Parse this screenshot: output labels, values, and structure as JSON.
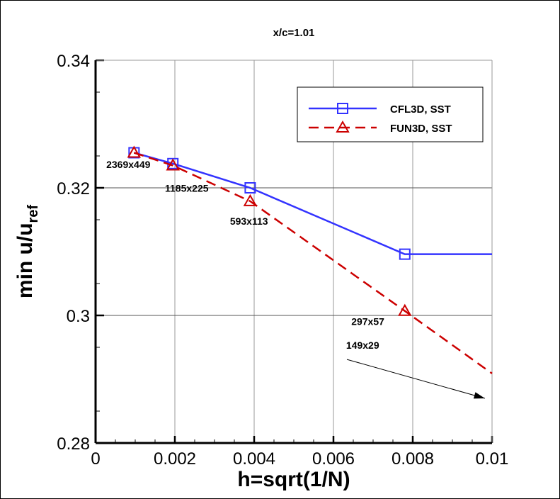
{
  "chart_data": {
    "type": "line",
    "title": "x/c=1.01",
    "xlabel": "h=sqrt(1/N)",
    "ylabel": "min u/u",
    "ylabel_subscript": "ref",
    "xlim": [
      0,
      0.01
    ],
    "ylim": [
      0.28,
      0.34
    ],
    "xticks": [
      "0",
      "0.002",
      "0.004",
      "0.006",
      "0.008",
      "0.01"
    ],
    "yticks": [
      "0.28",
      "0.3",
      "0.32",
      "0.34"
    ],
    "grid": true,
    "legend_position": "top-right",
    "series": [
      {
        "name": "CFL3D, SST",
        "color": "#3333ff",
        "dash": "solid",
        "marker": "square",
        "x": [
          0.00097,
          0.00195,
          0.0039,
          0.0078
        ],
        "y": [
          0.3255,
          0.3238,
          0.32,
          0.3096
        ],
        "extension": {
          "x": 0.01,
          "y": 0.3096
        }
      },
      {
        "name": "FUN3D, SST",
        "color": "#cc0000",
        "dash": "dashed",
        "marker": "triangle",
        "x": [
          0.00097,
          0.00195,
          0.0039,
          0.0078
        ],
        "y": [
          0.3255,
          0.3235,
          0.3179,
          0.3007
        ],
        "extension": {
          "x": 0.01,
          "y": 0.2909
        }
      }
    ],
    "annotations": [
      {
        "text": "2369x449",
        "x": 0.00027,
        "y": 0.3231
      },
      {
        "text": "1185x225",
        "x": 0.00175,
        "y": 0.3194
      },
      {
        "text": "593x113",
        "x": 0.00339,
        "y": 0.3142
      },
      {
        "text": "297x57",
        "x": 0.00645,
        "y": 0.2985
      },
      {
        "text": "149x29",
        "x": 0.00632,
        "y": 0.2948
      }
    ],
    "arrow": {
      "from": [
        0.00634,
        0.2931
      ],
      "to": [
        0.00982,
        0.287
      ]
    }
  }
}
